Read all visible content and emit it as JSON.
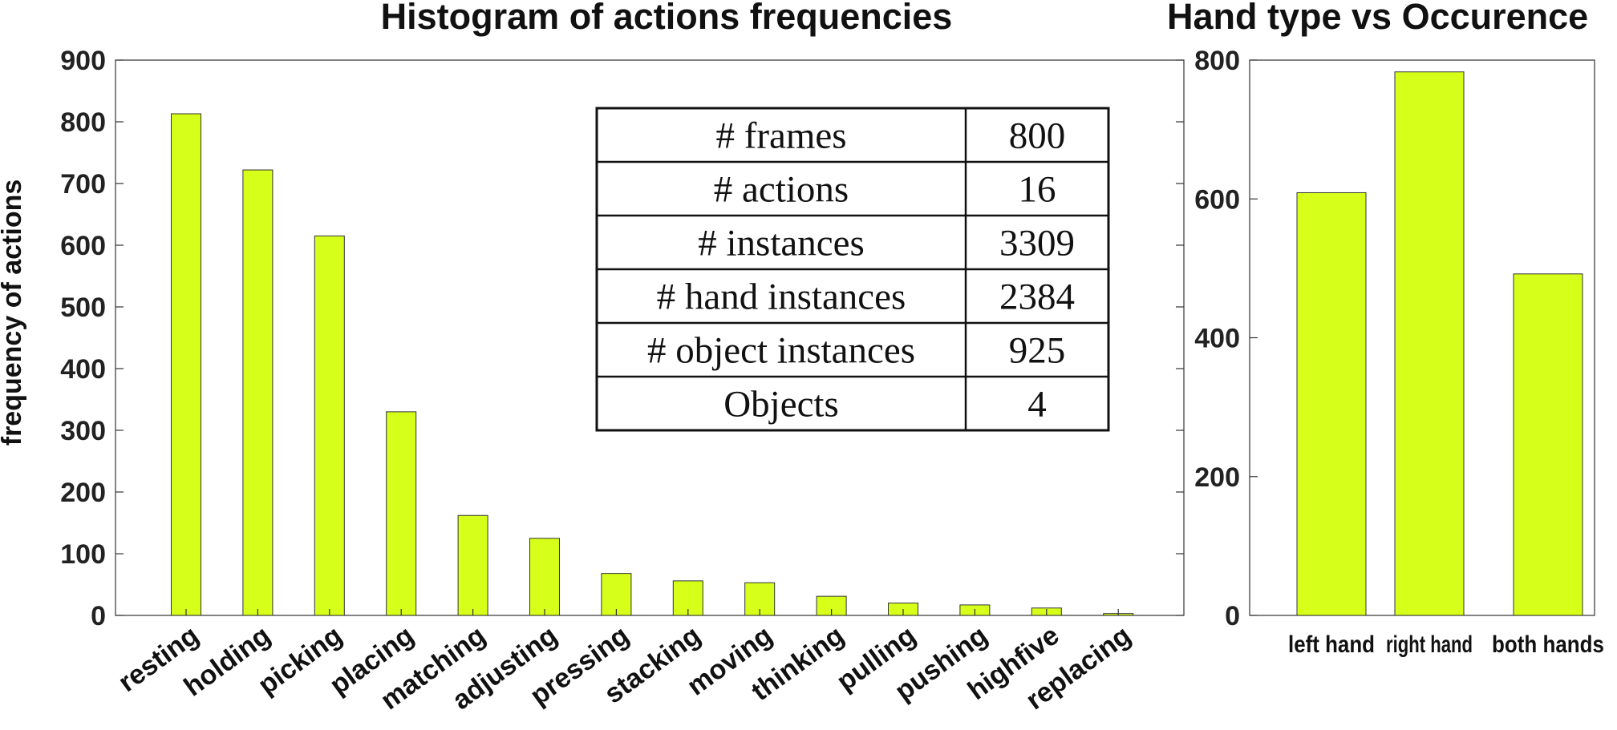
{
  "chart_data": [
    {
      "type": "bar",
      "title": "Histogram of actions frequencies",
      "xlabel": "",
      "ylabel": "frequency of actions",
      "ylim": [
        0,
        900
      ],
      "yticks": [
        "0",
        "100",
        "200",
        "300",
        "400",
        "500",
        "600",
        "700",
        "800",
        "900"
      ],
      "categories": [
        "resting",
        "holding",
        "picking",
        "placing",
        "matching",
        "adjusting",
        "pressing",
        "stacking",
        "moving",
        "thinking",
        "pulling",
        "pushing",
        "highfive",
        "replacing"
      ],
      "values": [
        813,
        722,
        615,
        330,
        162,
        125,
        68,
        56,
        53,
        31,
        20,
        17,
        12,
        3
      ],
      "bar_color": "#d6ff1a",
      "grid": false,
      "table": {
        "rows": [
          {
            "label": "# frames",
            "value": "800"
          },
          {
            "label": "# actions",
            "value": "16"
          },
          {
            "label": "# instances",
            "value": "3309"
          },
          {
            "label": "# hand instances",
            "value": "2384"
          },
          {
            "label": "# object instances",
            "value": "925"
          },
          {
            "label": "Objects",
            "value": "4"
          }
        ]
      }
    },
    {
      "type": "bar",
      "title": "Hand type vs Occurence",
      "xlabel": "",
      "ylabel": "",
      "ylim": [
        0,
        800
      ],
      "yticks": [
        "0",
        "200",
        "400",
        "600",
        "800"
      ],
      "categories": [
        "left hand",
        "right hand",
        "both hands"
      ],
      "values": [
        609,
        783,
        492
      ],
      "bar_color": "#d6ff1a",
      "grid": false
    }
  ]
}
